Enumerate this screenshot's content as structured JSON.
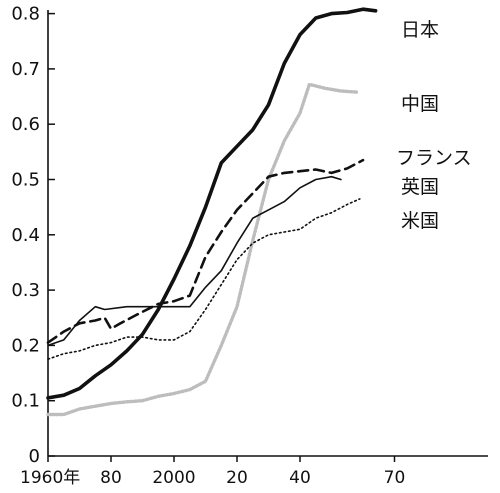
{
  "chart_data": {
    "type": "line",
    "title": "",
    "xlabel": "",
    "ylabel": "",
    "xlim": [
      1960,
      2075
    ],
    "ylim": [
      0,
      0.82
    ],
    "grid": false,
    "legend": "labels at line ends",
    "x_ticks": [
      {
        "value": 1960,
        "label": "1960年"
      },
      {
        "value": 1980,
        "label": "80"
      },
      {
        "value": 2000,
        "label": "2000"
      },
      {
        "value": 2020,
        "label": "20"
      },
      {
        "value": 2040,
        "label": "40"
      },
      {
        "value": 2070,
        "label": "70"
      }
    ],
    "y_ticks": [
      {
        "value": 0,
        "label": "0"
      },
      {
        "value": 0.1,
        "label": "0.1"
      },
      {
        "value": 0.2,
        "label": "0.2"
      },
      {
        "value": 0.3,
        "label": "0.3"
      },
      {
        "value": 0.4,
        "label": "0.4"
      },
      {
        "value": 0.5,
        "label": "0.5"
      },
      {
        "value": 0.6,
        "label": "0.6"
      },
      {
        "value": 0.7,
        "label": "0.7"
      },
      {
        "value": 0.8,
        "label": "0.8"
      }
    ],
    "series": [
      {
        "name": "日本",
        "style": "thick",
        "color": "#111111",
        "points": [
          [
            1960,
            0.105
          ],
          [
            1965,
            0.11
          ],
          [
            1970,
            0.122
          ],
          [
            1975,
            0.145
          ],
          [
            1980,
            0.165
          ],
          [
            1985,
            0.19
          ],
          [
            1990,
            0.22
          ],
          [
            1995,
            0.265
          ],
          [
            2000,
            0.32
          ],
          [
            2005,
            0.38
          ],
          [
            2010,
            0.45
          ],
          [
            2015,
            0.53
          ],
          [
            2020,
            0.56
          ],
          [
            2025,
            0.59
          ],
          [
            2030,
            0.635
          ],
          [
            2035,
            0.71
          ],
          [
            2040,
            0.762
          ],
          [
            2045,
            0.792
          ],
          [
            2050,
            0.8
          ],
          [
            2055,
            0.802
          ],
          [
            2060,
            0.808
          ],
          [
            2064,
            0.805
          ]
        ]
      },
      {
        "name": "中国",
        "style": "gray",
        "color": "#bdbdbd",
        "points": [
          [
            1960,
            0.075
          ],
          [
            1965,
            0.075
          ],
          [
            1970,
            0.085
          ],
          [
            1975,
            0.09
          ],
          [
            1980,
            0.095
          ],
          [
            1985,
            0.098
          ],
          [
            1990,
            0.1
          ],
          [
            1995,
            0.108
          ],
          [
            2000,
            0.113
          ],
          [
            2005,
            0.12
          ],
          [
            2010,
            0.135
          ],
          [
            2015,
            0.2
          ],
          [
            2020,
            0.27
          ],
          [
            2025,
            0.39
          ],
          [
            2030,
            0.5
          ],
          [
            2035,
            0.57
          ],
          [
            2040,
            0.62
          ],
          [
            2043,
            0.672
          ],
          [
            2048,
            0.665
          ],
          [
            2053,
            0.66
          ],
          [
            2058,
            0.658
          ]
        ]
      },
      {
        "name": "フランス",
        "style": "dashed",
        "color": "#111111",
        "points": [
          [
            1960,
            0.205
          ],
          [
            1965,
            0.225
          ],
          [
            1970,
            0.24
          ],
          [
            1975,
            0.245
          ],
          [
            1978,
            0.25
          ],
          [
            1980,
            0.23
          ],
          [
            1983,
            0.24
          ],
          [
            1988,
            0.255
          ],
          [
            1995,
            0.275
          ],
          [
            2000,
            0.28
          ],
          [
            2005,
            0.29
          ],
          [
            2010,
            0.36
          ],
          [
            2015,
            0.405
          ],
          [
            2020,
            0.445
          ],
          [
            2025,
            0.475
          ],
          [
            2030,
            0.505
          ],
          [
            2035,
            0.512
          ],
          [
            2040,
            0.515
          ],
          [
            2045,
            0.518
          ],
          [
            2050,
            0.512
          ],
          [
            2055,
            0.52
          ],
          [
            2060,
            0.535
          ]
        ]
      },
      {
        "name": "英国",
        "style": "thin",
        "color": "#111111",
        "points": [
          [
            1960,
            0.2
          ],
          [
            1965,
            0.21
          ],
          [
            1970,
            0.245
          ],
          [
            1975,
            0.27
          ],
          [
            1978,
            0.265
          ],
          [
            1985,
            0.27
          ],
          [
            1995,
            0.27
          ],
          [
            2000,
            0.27
          ],
          [
            2005,
            0.27
          ],
          [
            2010,
            0.305
          ],
          [
            2015,
            0.335
          ],
          [
            2020,
            0.385
          ],
          [
            2025,
            0.43
          ],
          [
            2030,
            0.445
          ],
          [
            2035,
            0.46
          ],
          [
            2040,
            0.485
          ],
          [
            2045,
            0.5
          ],
          [
            2050,
            0.505
          ],
          [
            2053,
            0.5
          ]
        ]
      },
      {
        "name": "米国",
        "style": "dotted",
        "color": "#111111",
        "points": [
          [
            1960,
            0.175
          ],
          [
            1965,
            0.185
          ],
          [
            1970,
            0.19
          ],
          [
            1975,
            0.2
          ],
          [
            1980,
            0.205
          ],
          [
            1985,
            0.215
          ],
          [
            1990,
            0.215
          ],
          [
            1995,
            0.21
          ],
          [
            2000,
            0.21
          ],
          [
            2005,
            0.225
          ],
          [
            2010,
            0.265
          ],
          [
            2015,
            0.31
          ],
          [
            2020,
            0.355
          ],
          [
            2025,
            0.385
          ],
          [
            2030,
            0.4
          ],
          [
            2035,
            0.405
          ],
          [
            2040,
            0.41
          ],
          [
            2045,
            0.43
          ],
          [
            2050,
            0.44
          ],
          [
            2055,
            0.455
          ],
          [
            2059,
            0.465
          ]
        ]
      }
    ]
  }
}
